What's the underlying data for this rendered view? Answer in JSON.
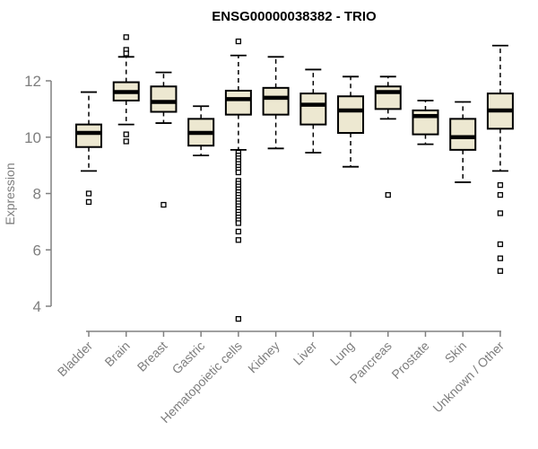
{
  "chart_data": {
    "type": "boxplot",
    "title": "ENSG00000038382 - TRIO",
    "ylabel": "Expression",
    "xlabel": "",
    "ylim": [
      3.4,
      13.7
    ],
    "y_ticks": [
      4,
      6,
      8,
      10,
      12
    ],
    "grid": false,
    "legend": null,
    "colors": {
      "box_fill": "#EDE8D1",
      "box_stroke": "#000000",
      "median": "#000000",
      "whisker": "#000000",
      "outlier_fill": "#FFFFFF",
      "outlier_stroke": "#000000",
      "axis": "#808080",
      "tick_text": "#7E7E7E",
      "title": "#000000",
      "background": "#FFFFFF"
    },
    "categories": [
      "Bladder",
      "Brain",
      "Breast",
      "Gastric",
      "Hematopoietic cells",
      "Kidney",
      "Liver",
      "Lung",
      "Pancreas",
      "Prostate",
      "Skin",
      "Unknown / Other"
    ],
    "series": [
      {
        "name": "Bladder",
        "whisker_low": 8.8,
        "q1": 9.65,
        "median": 10.15,
        "q3": 10.45,
        "whisker_high": 11.6,
        "outliers": [
          8.0,
          7.7
        ]
      },
      {
        "name": "Brain",
        "whisker_low": 10.45,
        "q1": 11.3,
        "median": 11.6,
        "q3": 11.95,
        "whisker_high": 12.85,
        "outliers": [
          13.55,
          13.1,
          12.97,
          10.1,
          9.85
        ]
      },
      {
        "name": "Breast",
        "whisker_low": 10.5,
        "q1": 10.9,
        "median": 11.25,
        "q3": 11.8,
        "whisker_high": 12.3,
        "outliers": [
          7.6
        ]
      },
      {
        "name": "Gastric",
        "whisker_low": 9.35,
        "q1": 9.7,
        "median": 10.15,
        "q3": 10.65,
        "whisker_high": 11.1,
        "outliers": []
      },
      {
        "name": "Hematopoietic cells",
        "whisker_low": 9.55,
        "q1": 10.8,
        "median": 11.35,
        "q3": 11.65,
        "whisker_high": 12.9,
        "outliers": [
          13.4,
          9.45,
          9.35,
          9.25,
          9.15,
          9.05,
          8.95,
          8.85,
          8.75,
          8.45,
          8.35,
          8.25,
          8.15,
          8.05,
          7.95,
          7.85,
          7.75,
          7.65,
          7.55,
          7.45,
          7.35,
          7.25,
          7.15,
          7.05,
          6.95,
          6.65,
          6.35,
          3.55
        ]
      },
      {
        "name": "Kidney",
        "whisker_low": 9.6,
        "q1": 10.8,
        "median": 11.4,
        "q3": 11.75,
        "whisker_high": 12.85,
        "outliers": []
      },
      {
        "name": "Liver",
        "whisker_low": 9.45,
        "q1": 10.45,
        "median": 11.15,
        "q3": 11.55,
        "whisker_high": 12.4,
        "outliers": []
      },
      {
        "name": "Lung",
        "whisker_low": 8.95,
        "q1": 10.15,
        "median": 10.95,
        "q3": 11.45,
        "whisker_high": 12.15,
        "outliers": []
      },
      {
        "name": "Pancreas",
        "whisker_low": 10.65,
        "q1": 11.0,
        "median": 11.6,
        "q3": 11.8,
        "whisker_high": 12.15,
        "outliers": [
          7.95
        ]
      },
      {
        "name": "Prostate",
        "whisker_low": 9.75,
        "q1": 10.1,
        "median": 10.75,
        "q3": 10.95,
        "whisker_high": 11.3,
        "outliers": []
      },
      {
        "name": "Skin",
        "whisker_low": 8.4,
        "q1": 9.55,
        "median": 10.0,
        "q3": 10.65,
        "whisker_high": 11.25,
        "outliers": []
      },
      {
        "name": "Unknown / Other",
        "whisker_low": 8.8,
        "q1": 10.3,
        "median": 10.95,
        "q3": 11.55,
        "whisker_high": 13.25,
        "outliers": [
          8.3,
          7.95,
          7.3,
          6.2,
          5.7,
          5.25
        ]
      }
    ]
  }
}
